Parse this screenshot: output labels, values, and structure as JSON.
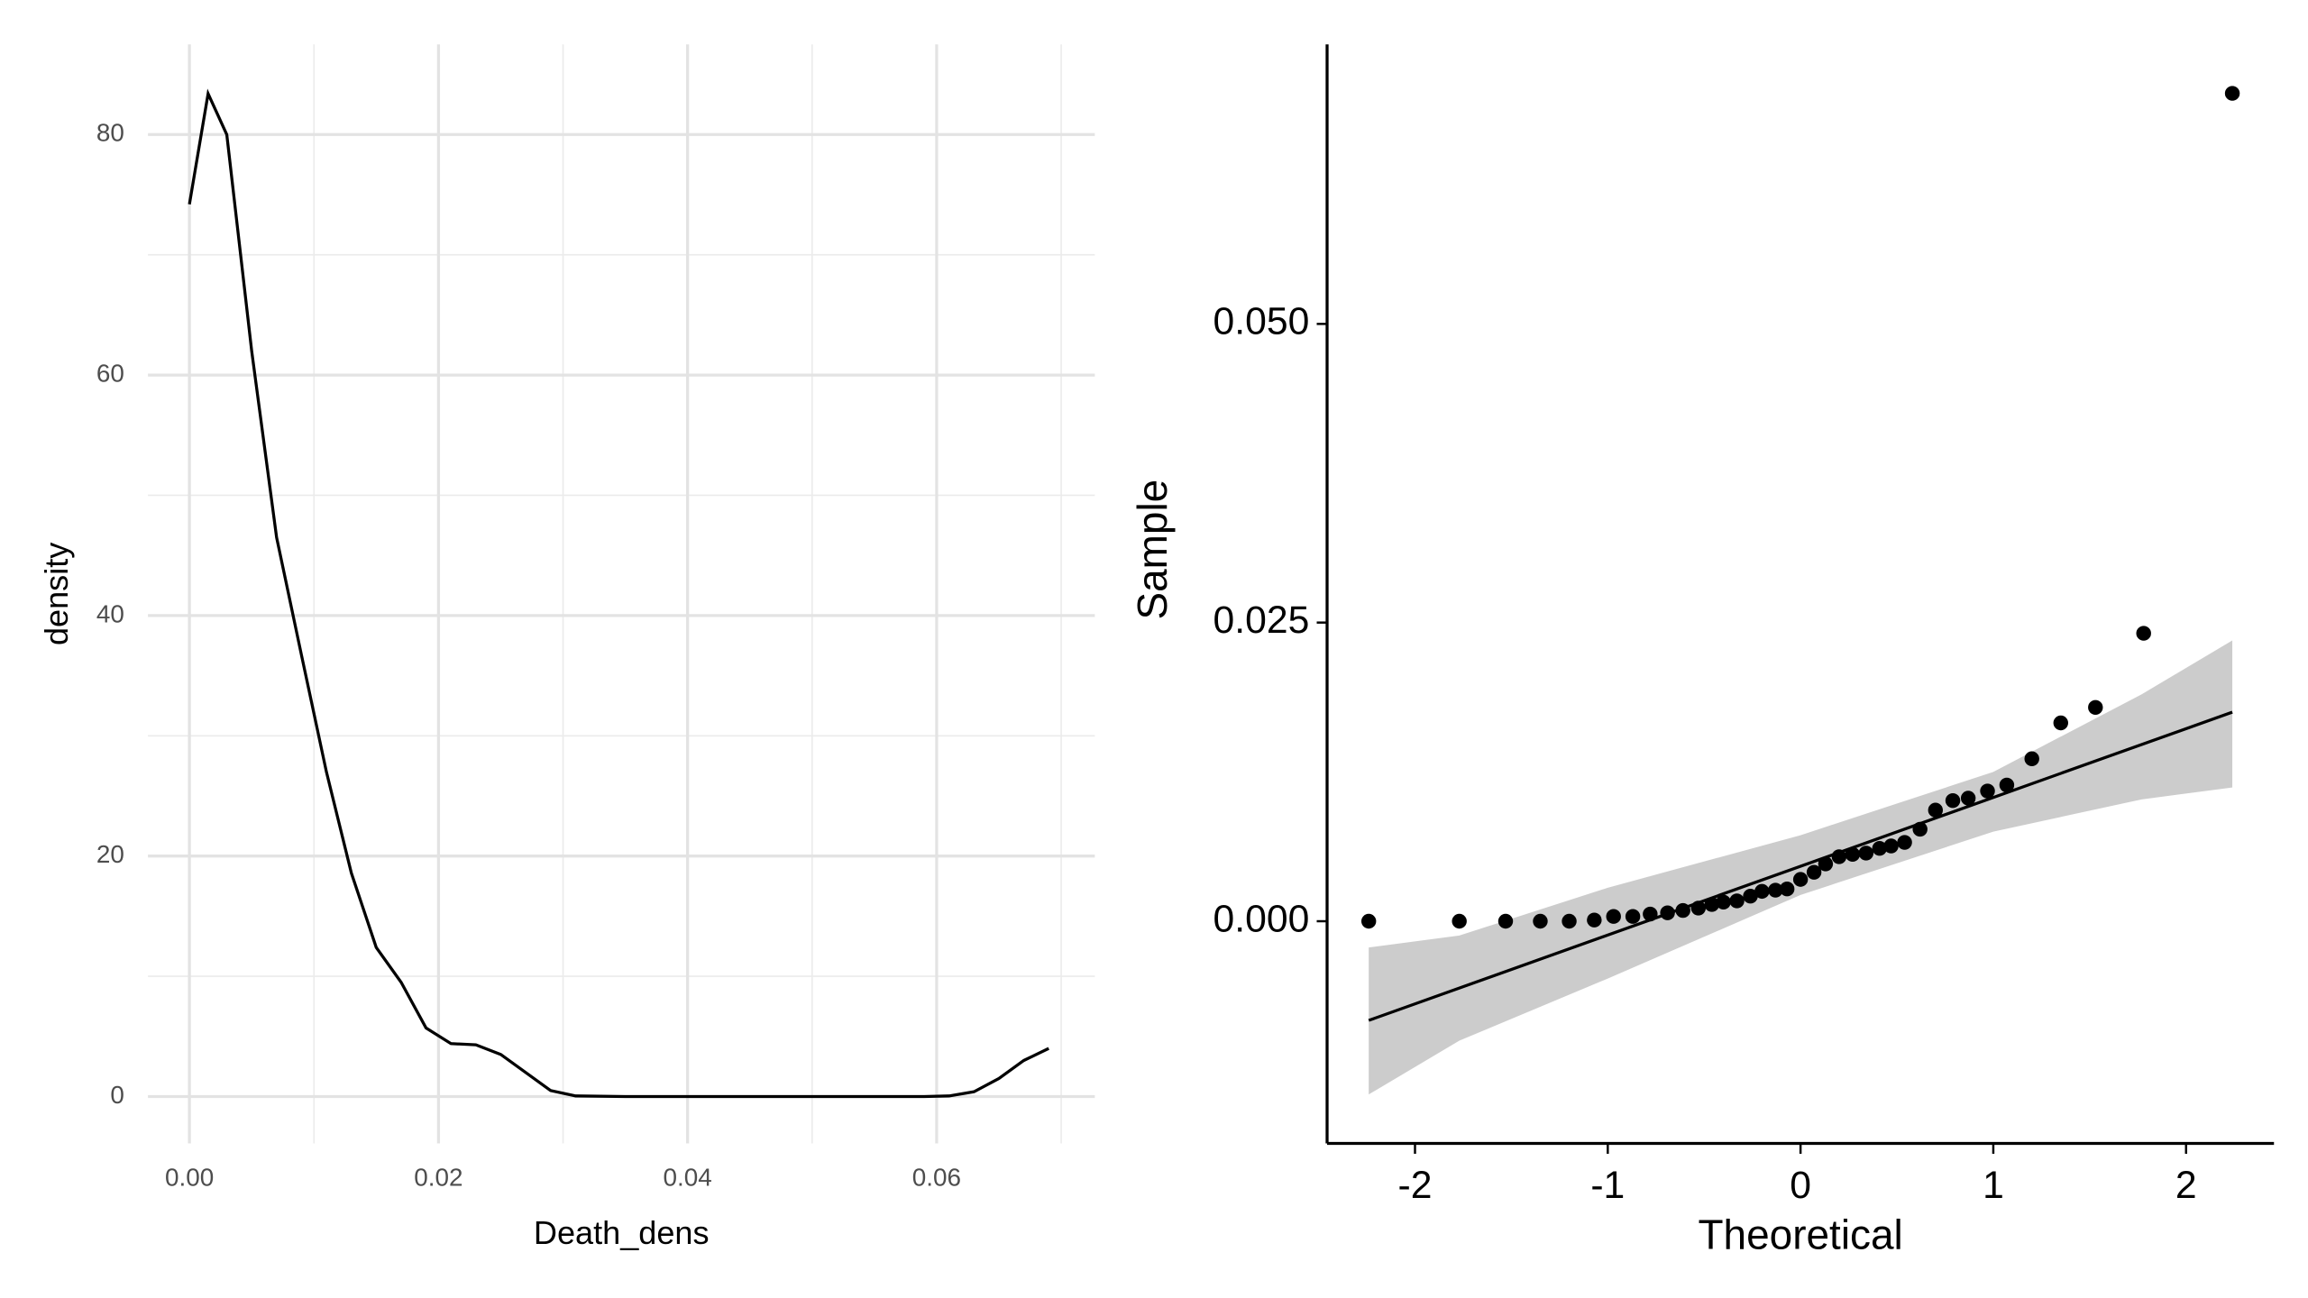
{
  "chart_data": [
    {
      "type": "line",
      "xlabel": "Death_dens",
      "ylabel": "density",
      "color": "#000000",
      "grid": true,
      "x": [
        0,
        0.0015,
        0.003,
        0.005,
        0.007,
        0.009,
        0.011,
        0.013,
        0.015,
        0.017,
        0.019,
        0.021,
        0.023,
        0.025,
        0.027,
        0.029,
        0.031,
        0.035,
        0.04,
        0.045,
        0.05,
        0.055,
        0.059,
        0.061,
        0.063,
        0.065,
        0.067,
        0.069
      ],
      "values": [
        74.2,
        83.4,
        80,
        62,
        46.5,
        36.7,
        27,
        18.6,
        12.4,
        9.5,
        5.7,
        4.4,
        4.3,
        3.5,
        2,
        0.5,
        0.05,
        0,
        0,
        0,
        0,
        0,
        0,
        0.05,
        0.4,
        1.5,
        3,
        4
      ],
      "xlim": [
        -0.00333,
        0.0727
      ],
      "ylim": [
        -3.9,
        87.5
      ],
      "xticks": [
        {
          "value": 0,
          "label": "0.00"
        },
        {
          "value": 0.02,
          "label": "0.02"
        },
        {
          "value": 0.04,
          "label": "0.04"
        },
        {
          "value": 0.06,
          "label": "0.06"
        }
      ],
      "yticks": [
        0,
        20,
        40,
        60,
        80
      ],
      "x_minor_grid": [
        0.01,
        0.03,
        0.05,
        0.07
      ],
      "y_minor_grid": [
        10,
        30,
        50,
        70
      ]
    },
    {
      "type": "scatter",
      "xlabel": "Theoretical",
      "ylabel": "Sample",
      "color": "#000000",
      "x": [
        -2.24,
        -1.77,
        -1.53,
        -1.35,
        -1.2,
        -1.07,
        -0.97,
        -0.87,
        -0.78,
        -0.69,
        -0.61,
        -0.53,
        -0.46,
        -0.4,
        -0.33,
        -0.26,
        -0.2,
        -0.13,
        -0.07,
        0,
        0.07,
        0.13,
        0.2,
        0.27,
        0.34,
        0.41,
        0.47,
        0.54,
        0.62,
        0.7,
        0.79,
        0.87,
        0.97,
        1.07,
        1.2,
        1.35,
        1.53,
        1.78,
        2.24
      ],
      "y": [
        0,
        0,
        0,
        0,
        0,
        0.0001,
        0.0004,
        0.0004,
        0.0006,
        0.0007,
        0.0009,
        0.0011,
        0.0014,
        0.0016,
        0.0017,
        0.0021,
        0.0025,
        0.0026,
        0.0027,
        0.0035,
        0.0041,
        0.0048,
        0.0054,
        0.0056,
        0.0057,
        0.0061,
        0.0063,
        0.0066,
        0.0077,
        0.0093,
        0.0101,
        0.0103,
        0.0109,
        0.0114,
        0.0136,
        0.0166,
        0.0179,
        0.0241,
        0.0693
      ],
      "line": {
        "x": [
          -2.24,
          2.24
        ],
        "y": [
          -0.0083,
          0.0175
        ]
      },
      "band": {
        "color": "#cccccc",
        "x": [
          -2.24,
          -1.77,
          -1,
          0,
          1,
          1.77,
          2.24
        ],
        "lower": [
          -0.0145,
          -0.01,
          -0.0048,
          0.0022,
          0.0075,
          0.0102,
          0.0112
        ],
        "upper": [
          -0.0022,
          -0.0012,
          0.0028,
          0.0072,
          0.0125,
          0.019,
          0.0235
        ]
      },
      "xlim": [
        -2.456,
        2.456
      ],
      "ylim": [
        -0.0186,
        0.0734
      ],
      "xticks": [
        -2,
        -1,
        0,
        1,
        2
      ],
      "yticks": [
        {
          "value": 0,
          "label": "0.000"
        },
        {
          "value": 0.025,
          "label": "0.025"
        },
        {
          "value": 0.05,
          "label": "0.050"
        }
      ]
    }
  ]
}
